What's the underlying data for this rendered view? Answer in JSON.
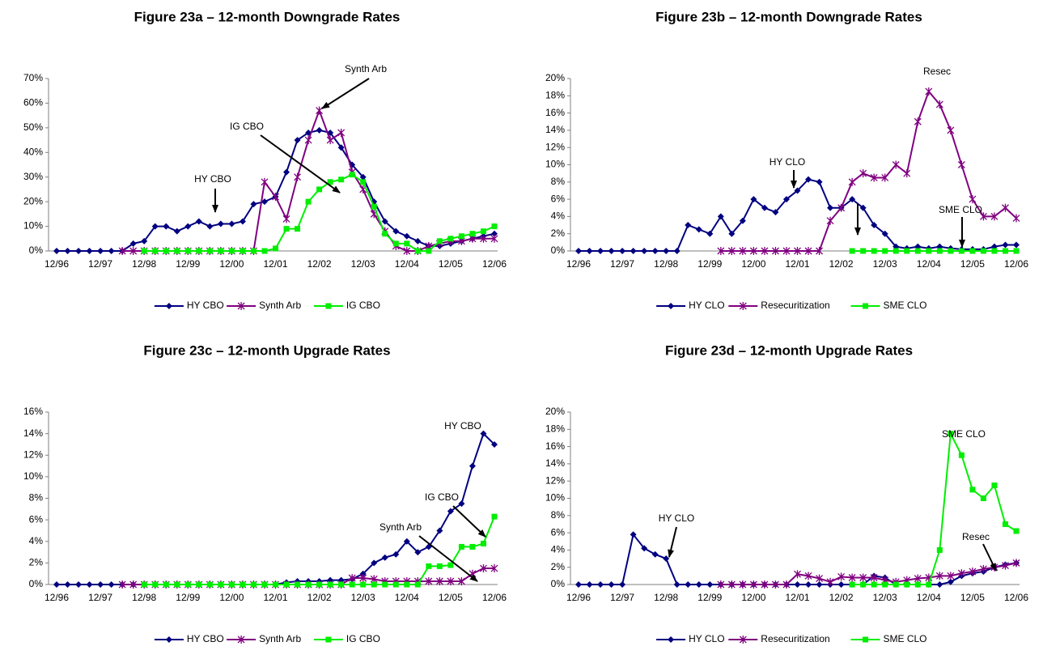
{
  "chart_data": [
    {
      "type": "line",
      "title": "Figure 23a – 12-month Downgrade Rates",
      "categories": [
        "12/96",
        null,
        null,
        null,
        "12/97",
        null,
        null,
        null,
        "12/98",
        null,
        null,
        null,
        "12/99",
        null,
        null,
        null,
        "12/00",
        null,
        null,
        null,
        "12/01",
        null,
        null,
        null,
        "12/02",
        null,
        null,
        null,
        "12/03",
        null,
        null,
        null,
        "12/04",
        null,
        null,
        null,
        "12/05",
        null,
        null,
        null,
        "12/06"
      ],
      "ylim": [
        0,
        70
      ],
      "yticks": [
        {
          "value": 0,
          "label": "0%"
        },
        {
          "value": 10,
          "label": "10%"
        },
        {
          "value": 20,
          "label": "20%"
        },
        {
          "value": 30,
          "label": "30%"
        },
        {
          "value": 40,
          "label": "40%"
        },
        {
          "value": 50,
          "label": "50%"
        },
        {
          "value": 60,
          "label": "60%"
        },
        {
          "value": 70,
          "label": "70%"
        }
      ],
      "annotations": [
        "Synth Arb",
        "IG CBO",
        "HY CBO"
      ],
      "series": [
        {
          "name": "HY CBO",
          "color": "#000080",
          "marker": "diamond",
          "values": [
            0,
            0,
            0,
            0,
            0,
            0,
            0,
            3,
            4,
            10,
            10,
            8,
            10,
            12,
            10,
            11,
            11,
            12,
            19,
            20,
            22,
            32,
            45,
            48,
            49,
            48,
            42,
            35,
            30,
            20,
            12,
            8,
            6,
            4,
            2,
            2,
            3,
            4,
            5,
            6,
            7
          ]
        },
        {
          "name": "Synth Arb",
          "color": "#800080",
          "marker": "star",
          "values": [
            null,
            null,
            null,
            null,
            null,
            null,
            0,
            0,
            0,
            0,
            0,
            0,
            0,
            0,
            0,
            0,
            0,
            0,
            0,
            28,
            22,
            13,
            30,
            45,
            57,
            45,
            48,
            32,
            25,
            15,
            8,
            2,
            0,
            0,
            2,
            3,
            4,
            4,
            5,
            5,
            5
          ]
        },
        {
          "name": "IG CBO",
          "color": "#00ee00",
          "marker": "square",
          "values": [
            null,
            null,
            null,
            null,
            null,
            null,
            null,
            null,
            0,
            0,
            0,
            0,
            0,
            0,
            0,
            0,
            0,
            0,
            0,
            0,
            1,
            9,
            9,
            20,
            25,
            28,
            29,
            31,
            28,
            18,
            7,
            3,
            3,
            0,
            0,
            4,
            5,
            6,
            7,
            8,
            10
          ]
        }
      ]
    },
    {
      "type": "line",
      "title": "Figure 23b – 12-month Downgrade Rates",
      "categories": [
        "12/96",
        null,
        null,
        null,
        "12/97",
        null,
        null,
        null,
        "12/98",
        null,
        null,
        null,
        "12/99",
        null,
        null,
        null,
        "12/00",
        null,
        null,
        null,
        "12/01",
        null,
        null,
        null,
        "12/02",
        null,
        null,
        null,
        "12/03",
        null,
        null,
        null,
        "12/04",
        null,
        null,
        null,
        "12/05",
        null,
        null,
        null,
        "12/06"
      ],
      "ylim": [
        0,
        20
      ],
      "yticks": [
        {
          "value": 0,
          "label": "0%"
        },
        {
          "value": 2,
          "label": "2%"
        },
        {
          "value": 4,
          "label": "4%"
        },
        {
          "value": 6,
          "label": "6%"
        },
        {
          "value": 8,
          "label": "8%"
        },
        {
          "value": 10,
          "label": "10%"
        },
        {
          "value": 12,
          "label": "12%"
        },
        {
          "value": 14,
          "label": "14%"
        },
        {
          "value": 16,
          "label": "16%"
        },
        {
          "value": 18,
          "label": "18%"
        },
        {
          "value": 20,
          "label": "20%"
        }
      ],
      "annotations": [
        "Resec",
        "HY CLO",
        "SME CLO"
      ],
      "series": [
        {
          "name": "HY CLO",
          "color": "#000080",
          "marker": "diamond",
          "values": [
            0,
            0,
            0,
            0,
            0,
            0,
            0,
            0,
            0,
            0,
            3,
            2.5,
            2,
            4,
            2,
            3.5,
            6,
            5,
            4.5,
            6,
            7,
            8.3,
            8,
            5,
            5,
            6,
            5,
            3,
            2,
            0.5,
            0.3,
            0.5,
            0.3,
            0.5,
            0.3,
            0.2,
            0.2,
            0.2,
            0.5,
            0.7,
            0.7
          ]
        },
        {
          "name": "Resecuritization",
          "color": "#800080",
          "marker": "star",
          "values": [
            null,
            null,
            null,
            null,
            null,
            null,
            null,
            null,
            null,
            null,
            null,
            null,
            null,
            0,
            0,
            0,
            0,
            0,
            0,
            0,
            0,
            0,
            0,
            3.5,
            5,
            8,
            9,
            8.5,
            8.5,
            10,
            9,
            15,
            18.5,
            17,
            14,
            10,
            6,
            4,
            4,
            5,
            3.8
          ]
        },
        {
          "name": "SME CLO",
          "color": "#00ee00",
          "marker": "square",
          "values": [
            null,
            null,
            null,
            null,
            null,
            null,
            null,
            null,
            null,
            null,
            null,
            null,
            null,
            null,
            null,
            null,
            null,
            null,
            null,
            null,
            null,
            null,
            null,
            null,
            null,
            0,
            0,
            0,
            0,
            0,
            0,
            0,
            0,
            0,
            0,
            0,
            0,
            0,
            0,
            0,
            0
          ]
        }
      ]
    },
    {
      "type": "line",
      "title": "Figure 23c – 12-month Upgrade Rates",
      "categories": [
        "12/96",
        null,
        null,
        null,
        "12/97",
        null,
        null,
        null,
        "12/98",
        null,
        null,
        null,
        "12/99",
        null,
        null,
        null,
        "12/00",
        null,
        null,
        null,
        "12/01",
        null,
        null,
        null,
        "12/02",
        null,
        null,
        null,
        "12/03",
        null,
        null,
        null,
        "12/04",
        null,
        null,
        null,
        "12/05",
        null,
        null,
        null,
        "12/06"
      ],
      "ylim": [
        0,
        16
      ],
      "yticks": [
        {
          "value": 0,
          "label": "0%"
        },
        {
          "value": 2,
          "label": "2%"
        },
        {
          "value": 4,
          "label": "4%"
        },
        {
          "value": 6,
          "label": "6%"
        },
        {
          "value": 8,
          "label": "8%"
        },
        {
          "value": 10,
          "label": "10%"
        },
        {
          "value": 12,
          "label": "12%"
        },
        {
          "value": 14,
          "label": "14%"
        },
        {
          "value": 16,
          "label": "16%"
        }
      ],
      "annotations": [
        "HY CBO",
        "IG CBO",
        "Synth Arb"
      ],
      "series": [
        {
          "name": "HY CBO",
          "color": "#000080",
          "marker": "diamond",
          "values": [
            0,
            0,
            0,
            0,
            0,
            0,
            0,
            0,
            0,
            0,
            0,
            0,
            0,
            0,
            0,
            0,
            0,
            0,
            0,
            0,
            0,
            0.2,
            0.3,
            0.3,
            0.3,
            0.4,
            0.4,
            0.5,
            1,
            2,
            2.5,
            2.8,
            4,
            3,
            3.5,
            5,
            6.8,
            7.5,
            11,
            14,
            13
          ]
        },
        {
          "name": "Synth Arb",
          "color": "#800080",
          "marker": "star",
          "values": [
            null,
            null,
            null,
            null,
            null,
            null,
            0,
            0,
            0,
            0,
            0,
            0,
            0,
            0,
            0,
            0,
            0,
            0,
            0,
            0,
            0,
            0,
            0,
            0,
            0,
            0,
            0,
            0.6,
            0.6,
            0.5,
            0.3,
            0.3,
            0.3,
            0.3,
            0.3,
            0.3,
            0.3,
            0.3,
            1,
            1.5,
            1.5
          ]
        },
        {
          "name": "IG CBO",
          "color": "#00ee00",
          "marker": "square",
          "values": [
            null,
            null,
            null,
            null,
            null,
            null,
            null,
            null,
            0,
            0,
            0,
            0,
            0,
            0,
            0,
            0,
            0,
            0,
            0,
            0,
            0,
            0,
            0,
            0,
            0,
            0,
            0,
            0,
            0,
            0,
            0,
            0,
            0,
            0,
            1.7,
            1.7,
            1.8,
            3.5,
            3.5,
            3.8,
            6.3
          ]
        }
      ]
    },
    {
      "type": "line",
      "title": "Figure 23d – 12-month Upgrade Rates",
      "categories": [
        "12/96",
        null,
        null,
        null,
        "12/97",
        null,
        null,
        null,
        "12/98",
        null,
        null,
        null,
        "12/99",
        null,
        null,
        null,
        "12/00",
        null,
        null,
        null,
        "12/01",
        null,
        null,
        null,
        "12/02",
        null,
        null,
        null,
        "12/03",
        null,
        null,
        null,
        "12/04",
        null,
        null,
        null,
        "12/05",
        null,
        null,
        null,
        "12/06"
      ],
      "ylim": [
        0,
        20
      ],
      "yticks": [
        {
          "value": 0,
          "label": "0%"
        },
        {
          "value": 2,
          "label": "2%"
        },
        {
          "value": 4,
          "label": "4%"
        },
        {
          "value": 6,
          "label": "6%"
        },
        {
          "value": 8,
          "label": "8%"
        },
        {
          "value": 10,
          "label": "10%"
        },
        {
          "value": 12,
          "label": "12%"
        },
        {
          "value": 14,
          "label": "14%"
        },
        {
          "value": 16,
          "label": "16%"
        },
        {
          "value": 18,
          "label": "18%"
        },
        {
          "value": 20,
          "label": "20%"
        }
      ],
      "annotations": [
        "SME CLO",
        "HY CLO",
        "Resec"
      ],
      "series": [
        {
          "name": "HY CLO",
          "color": "#000080",
          "marker": "diamond",
          "values": [
            0,
            0,
            0,
            0,
            0,
            5.8,
            4.2,
            3.5,
            3,
            0,
            0,
            0,
            0,
            0,
            0,
            0,
            0,
            0,
            0,
            0,
            0,
            0,
            0,
            0,
            0,
            0,
            0,
            1,
            0.8,
            0,
            0,
            0,
            0,
            0,
            0.3,
            1,
            1.3,
            1.5,
            2,
            2.3,
            2.5
          ]
        },
        {
          "name": "Resecuritization",
          "color": "#800080",
          "marker": "star",
          "values": [
            null,
            null,
            null,
            null,
            null,
            null,
            null,
            null,
            null,
            null,
            null,
            null,
            null,
            0,
            0,
            0,
            0,
            0,
            0,
            0,
            1.2,
            1,
            0.7,
            0.3,
            0.9,
            0.8,
            0.8,
            0.8,
            0.5,
            0.3,
            0.5,
            0.7,
            0.8,
            1,
            1,
            1.3,
            1.5,
            1.8,
            2,
            2.2,
            2.5
          ]
        },
        {
          "name": "SME CLO",
          "color": "#00ee00",
          "marker": "square",
          "values": [
            null,
            null,
            null,
            null,
            null,
            null,
            null,
            null,
            null,
            null,
            null,
            null,
            null,
            null,
            null,
            null,
            null,
            null,
            null,
            null,
            null,
            null,
            null,
            null,
            null,
            0,
            0,
            0,
            0,
            0,
            0,
            0,
            0,
            4,
            17.5,
            15,
            11,
            10,
            11.5,
            7,
            6.2
          ]
        }
      ]
    }
  ]
}
